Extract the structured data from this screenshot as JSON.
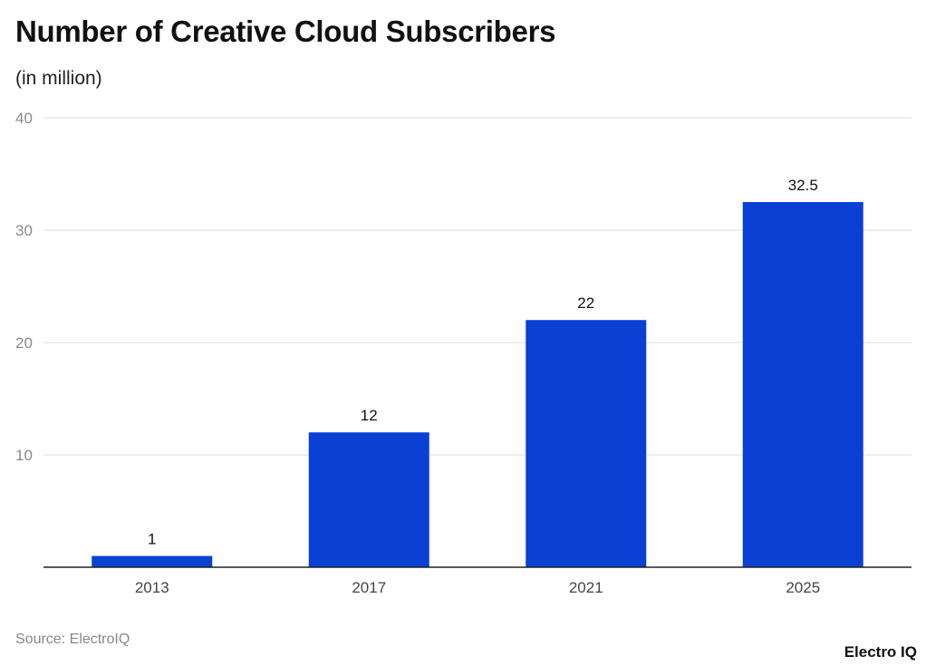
{
  "chart_data": {
    "type": "bar",
    "title": "Number of Creative Cloud Subscribers",
    "subtitle": "(in million)",
    "categories": [
      "2013",
      "2017",
      "2021",
      "2025"
    ],
    "values": [
      1,
      12,
      22,
      32.5
    ],
    "data_labels": [
      "1",
      "12",
      "22",
      "32.5"
    ],
    "ylim": [
      0,
      40
    ],
    "yticks": [
      10,
      20,
      30,
      40
    ],
    "grid": true,
    "bar_color": "#0a40d4",
    "source": "Source: ElectroIQ",
    "logo": "Electro IQ"
  }
}
